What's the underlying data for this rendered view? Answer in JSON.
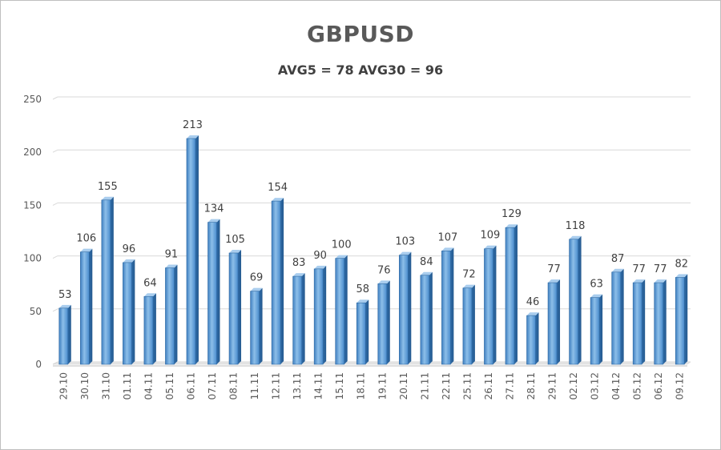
{
  "chart_data": {
    "type": "bar",
    "title": "GBPUSD",
    "subtitle": "AVG5 = 78 AVG30 = 96",
    "xlabel": "",
    "ylabel": "",
    "ylim": [
      0,
      250
    ],
    "yticks": [
      "0",
      "50",
      "100",
      "150",
      "200",
      "250"
    ],
    "grid": true,
    "bar_color": "#5b9bd5",
    "categories": [
      "29.10",
      "30.10",
      "31.10",
      "01.11",
      "04.11",
      "05.11",
      "06.11",
      "07.11",
      "08.11",
      "11.11",
      "12.11",
      "13.11",
      "14.11",
      "15.11",
      "18.11",
      "19.11",
      "20.11",
      "21.11",
      "22.11",
      "25.11",
      "26.11",
      "27.11",
      "28.11",
      "29.11",
      "02.12",
      "03.12",
      "04.12",
      "05.12",
      "06.12",
      "09.12"
    ],
    "values": [
      53,
      106,
      155,
      96,
      64,
      91,
      213,
      134,
      105,
      69,
      154,
      83,
      90,
      100,
      58,
      76,
      103,
      84,
      107,
      72,
      109,
      129,
      46,
      77,
      118,
      63,
      87,
      77,
      77,
      82
    ]
  }
}
